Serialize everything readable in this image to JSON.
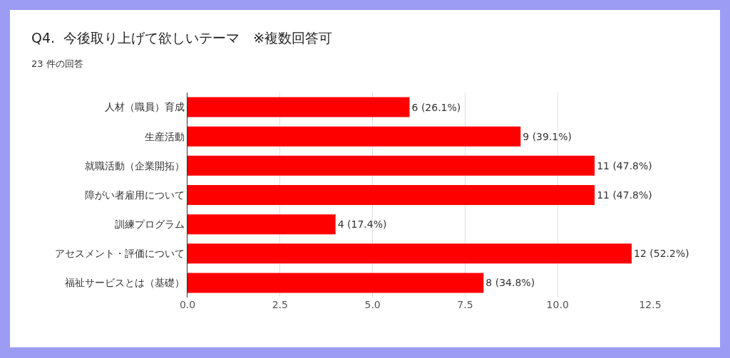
{
  "chart_data": {
    "type": "bar",
    "orientation": "horizontal",
    "title": "Q4.  今後取り上げて欲しいテーマ　※複数回答可",
    "subtitle": "23 件の回答",
    "categories": [
      "人材（職員）育成",
      "生産活動",
      "就職活動（企業開拓）",
      "障がい者雇用について",
      "訓練プログラム",
      "アセスメント・評価について",
      "福祉サービスとは（基礎）"
    ],
    "values": [
      6,
      9,
      11,
      11,
      4,
      12,
      8
    ],
    "value_labels": [
      "6 (26.1%)",
      "9 (39.1%)",
      "11 (47.8%)",
      "11 (47.8%)",
      "4 (17.4%)",
      "12 (52.2%)",
      "8 (34.8%)"
    ],
    "color": "#ff0000",
    "xlim": [
      0,
      12.5
    ],
    "xticks": [
      {
        "value": 0,
        "label": "0.0"
      },
      {
        "value": 2.5,
        "label": "2.5"
      },
      {
        "value": 5,
        "label": "5.0"
      },
      {
        "value": 7.5,
        "label": "7.5"
      },
      {
        "value": 10,
        "label": "10.0"
      },
      {
        "value": 12.5,
        "label": "12.5"
      }
    ],
    "grid": "x",
    "legend": false
  }
}
